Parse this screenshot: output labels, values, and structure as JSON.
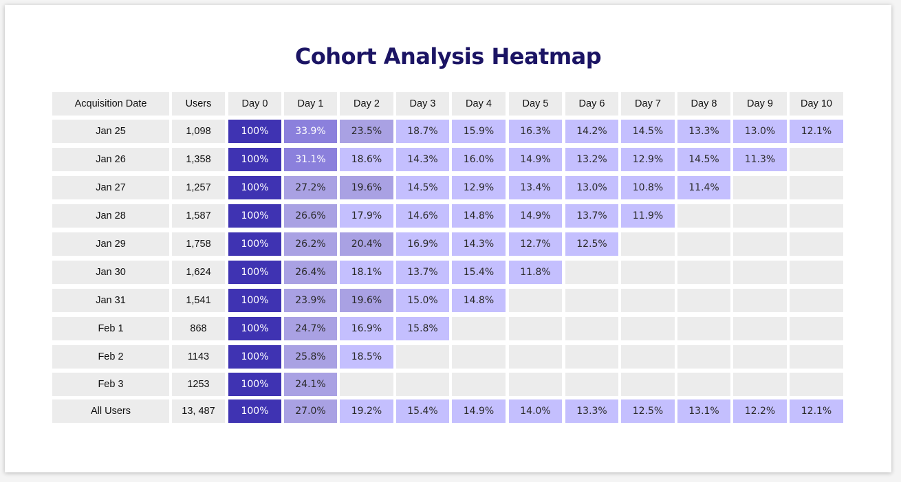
{
  "title": "Cohort Analysis Heatmap",
  "colors": {
    "day0": "#3f33b2",
    "dark": "#8b80dc",
    "mid": "#a9a1e3",
    "light": "#c4bffe",
    "empty": "#ececec",
    "label_bg": "#ececec",
    "title": "#1b1464"
  },
  "chart_data": {
    "type": "heatmap",
    "title": "Cohort Analysis Heatmap",
    "columns": [
      "Acquisition Date",
      "Users",
      "Day 0",
      "Day 1",
      "Day 2",
      "Day 3",
      "Day 4",
      "Day 5",
      "Day 6",
      "Day 7",
      "Day 8",
      "Day 9",
      "Day 10"
    ],
    "rows": [
      {
        "label": "Jan 25",
        "users": "1,098",
        "values": [
          "100%",
          "33.9%",
          "23.5%",
          "18.7%",
          "15.9%",
          "16.3%",
          "14.2%",
          "14.5%",
          "13.3%",
          "13.0%",
          "12.1%"
        ]
      },
      {
        "label": "Jan 26",
        "users": "1,358",
        "values": [
          "100%",
          "31.1%",
          "18.6%",
          "14.3%",
          "16.0%",
          "14.9%",
          "13.2%",
          "12.9%",
          "14.5%",
          "11.3%"
        ]
      },
      {
        "label": "Jan 27",
        "users": "1,257",
        "values": [
          "100%",
          "27.2%",
          "19.6%",
          "14.5%",
          "12.9%",
          "13.4%",
          "13.0%",
          "10.8%",
          "11.4%"
        ]
      },
      {
        "label": "Jan 28",
        "users": "1,587",
        "values": [
          "100%",
          "26.6%",
          "17.9%",
          "14.6%",
          "14.8%",
          "14.9%",
          "13.7%",
          "11.9%"
        ]
      },
      {
        "label": "Jan 29",
        "users": "1,758",
        "values": [
          "100%",
          "26.2%",
          "20.4%",
          "16.9%",
          "14.3%",
          "12.7%",
          "12.5%"
        ]
      },
      {
        "label": "Jan 30",
        "users": "1,624",
        "values": [
          "100%",
          "26.4%",
          "18.1%",
          "13.7%",
          "15.4%",
          "11.8%"
        ]
      },
      {
        "label": "Jan 31",
        "users": "1,541",
        "values": [
          "100%",
          "23.9%",
          "19.6%",
          "15.0%",
          "14.8%"
        ]
      },
      {
        "label": "Feb 1",
        "users": "868",
        "values": [
          "100%",
          "24.7%",
          "16.9%",
          "15.8%"
        ]
      },
      {
        "label": "Feb 2",
        "users": "1143",
        "values": [
          "100%",
          "25.8%",
          "18.5%"
        ]
      },
      {
        "label": "Feb 3",
        "users": "1253",
        "values": [
          "100%",
          "24.1%"
        ]
      },
      {
        "label": "All Users",
        "users": "13, 487",
        "values": [
          "100%",
          "27.0%",
          "19.2%",
          "15.4%",
          "14.9%",
          "14.0%",
          "13.3%",
          "12.5%",
          "13.1%",
          "12.2%",
          "12.1%"
        ]
      }
    ],
    "tone_legend": {
      "day0": "100%",
      "dark": ">= 28%",
      "mid": ">= 19.5%",
      "light": "< 19.5%"
    }
  }
}
